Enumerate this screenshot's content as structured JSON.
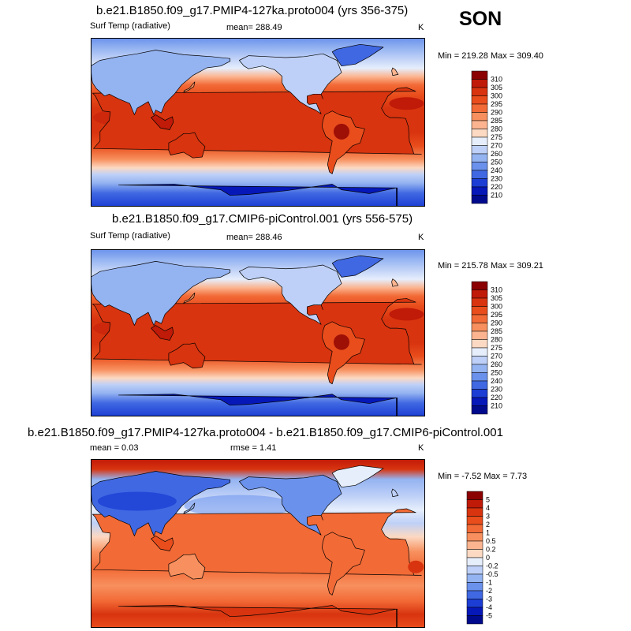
{
  "season": "SON",
  "panels": [
    {
      "title": "b.e21.B1850.f09_g17.PMIP4-127ka.proto004 (yrs 356-375)",
      "left_label": "Surf Temp (radiative)",
      "center_label": "mean= 288.49",
      "units": "K",
      "minmax": "Min = 219.28 Max = 309.40"
    },
    {
      "title": "b.e21.B1850.f09_g17.CMIP6-piControl.001 (yrs 556-575)",
      "left_label": "Surf Temp (radiative)",
      "center_label": "mean= 288.46",
      "units": "K",
      "minmax": "Min = 215.78 Max = 309.21"
    },
    {
      "title": "b.e21.B1850.f09_g17.PMIP4-127ka.proto004 - b.e21.B1850.f09_g17.CMIP6-piControl.001",
      "left_label": "mean =   0.03",
      "center_label": "rmse =   1.41",
      "units": "K",
      "minmax": "Min =  -7.52 Max =   7.73"
    }
  ],
  "chart_data": [
    {
      "type": "heatmap",
      "title": "b.e21.B1850.f09_g17.PMIP4-127ka.proto004 (yrs 356-375)",
      "variable": "Surf Temp (radiative)",
      "units": "K",
      "mean": 288.49,
      "min": 219.28,
      "max": 309.4,
      "colorbar": {
        "labels": [
          "310",
          "305",
          "300",
          "295",
          "290",
          "285",
          "280",
          "275",
          "270",
          "260",
          "250",
          "240",
          "230",
          "220",
          "210"
        ],
        "colors": [
          "#8b0000",
          "#c01a08",
          "#d8340f",
          "#e94d1c",
          "#f26a36",
          "#f7905e",
          "#fbb48f",
          "#fcd9c2",
          "#e6eefc",
          "#bed0f7",
          "#94b3f1",
          "#6a91ec",
          "#4068e2",
          "#1c3ed4",
          "#0618b8",
          "#000a8c"
        ]
      }
    },
    {
      "type": "heatmap",
      "title": "b.e21.B1850.f09_g17.CMIP6-piControl.001 (yrs 556-575)",
      "variable": "Surf Temp (radiative)",
      "units": "K",
      "mean": 288.46,
      "min": 215.78,
      "max": 309.21,
      "colorbar": {
        "labels": [
          "310",
          "305",
          "300",
          "295",
          "290",
          "285",
          "280",
          "275",
          "270",
          "260",
          "250",
          "240",
          "230",
          "220",
          "210"
        ],
        "colors": [
          "#8b0000",
          "#c01a08",
          "#d8340f",
          "#e94d1c",
          "#f26a36",
          "#f7905e",
          "#fbb48f",
          "#fcd9c2",
          "#e6eefc",
          "#bed0f7",
          "#94b3f1",
          "#6a91ec",
          "#4068e2",
          "#1c3ed4",
          "#0618b8",
          "#000a8c"
        ]
      }
    },
    {
      "type": "heatmap",
      "title": "b.e21.B1850.f09_g17.PMIP4-127ka.proto004 - b.e21.B1850.f09_g17.CMIP6-piControl.001",
      "units": "K",
      "mean": 0.03,
      "rmse": 1.41,
      "min": -7.52,
      "max": 7.73,
      "colorbar": {
        "labels": [
          "5",
          "4",
          "3",
          "2",
          "1",
          "0.5",
          "0.2",
          "0",
          "-0.2",
          "-0.5",
          "-1",
          "-2",
          "-3",
          "-4",
          "-5"
        ],
        "colors": [
          "#8b0000",
          "#c01a08",
          "#d8340f",
          "#e94d1c",
          "#f26a36",
          "#f7905e",
          "#fbb48f",
          "#fcd9c2",
          "#e6eefc",
          "#bed0f7",
          "#94b3f1",
          "#6a91ec",
          "#4068e2",
          "#1c3ed4",
          "#0618b8",
          "#000a8c"
        ]
      }
    }
  ]
}
